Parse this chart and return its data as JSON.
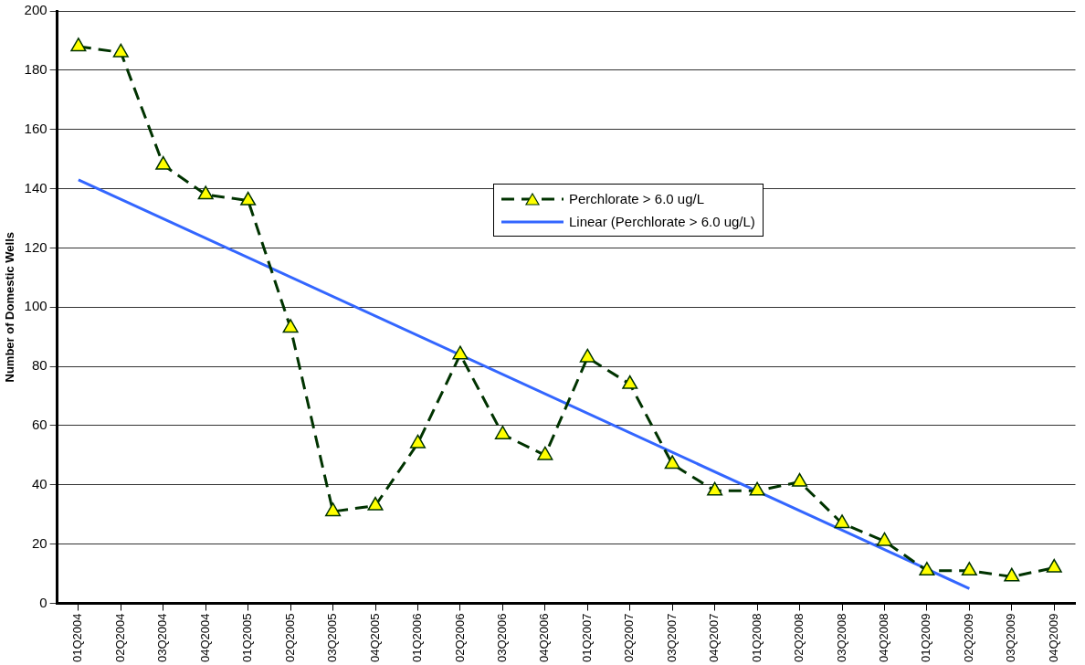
{
  "chart_data": {
    "type": "line",
    "ylabel": "Number of Domestic Wells",
    "categories": [
      "01Q2004",
      "02Q2004",
      "03Q2004",
      "04Q2004",
      "01Q2005",
      "02Q2005",
      "03Q2005",
      "04Q2005",
      "01Q2006",
      "02Q2006",
      "03Q2006",
      "04Q2006",
      "01Q2007",
      "02Q2007",
      "03Q2007",
      "04Q2007",
      "01Q2008",
      "02Q2008",
      "03Q2008",
      "04Q2008",
      "01Q2009",
      "02Q2009",
      "03Q2009",
      "04Q2009"
    ],
    "series": [
      {
        "name": "Perchlorate > 6.0 ug/L",
        "color": "#003300",
        "marker": "triangle",
        "line_style": "dashed",
        "values": [
          188,
          186,
          148,
          138,
          136,
          93,
          31,
          33,
          54,
          84,
          57,
          50,
          83,
          74,
          47,
          38,
          38,
          41,
          27,
          21,
          11,
          11,
          9,
          12
        ]
      },
      {
        "name": "Linear (Perchlorate > 6.0 ug/L)",
        "color": "#3366ff",
        "type": "line",
        "marker": "none",
        "line_style": "solid",
        "x": [
          "01Q2004",
          "02Q2009"
        ],
        "values": [
          143,
          5
        ]
      }
    ],
    "ylim": [
      0,
      200
    ],
    "yticks": [
      0,
      20,
      40,
      60,
      80,
      100,
      120,
      140,
      160,
      180,
      200
    ],
    "grid": "y",
    "legend": "top right"
  }
}
